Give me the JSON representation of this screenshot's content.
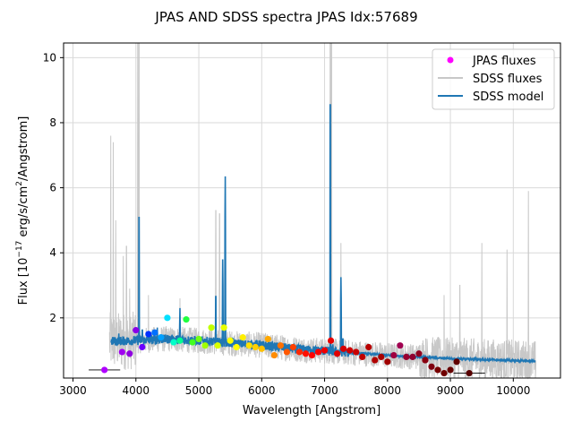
{
  "chart_data": {
    "type": "scatter",
    "title": "JPAS AND SDSS spectra JPAS Idx:57689",
    "xlabel": "Wavelength [Angstrom]",
    "ylabel_parts": {
      "prefix": "Flux [10",
      "exp": "−17",
      "mid": " erg/s/cm",
      "exp2": "2",
      "suffix": "/Angstrom]"
    },
    "xlim": [
      2850,
      10750
    ],
    "ylim": [
      0.15,
      10.45
    ],
    "xticks": [
      3000,
      4000,
      5000,
      6000,
      7000,
      8000,
      9000,
      10000
    ],
    "xtick_labels": [
      "3000",
      "4000",
      "5000",
      "6000",
      "7000",
      "8000",
      "9000",
      "10000"
    ],
    "yticks": [
      2,
      4,
      6,
      8,
      10
    ],
    "ytick_labels": [
      "2",
      "4",
      "6",
      "8",
      "10"
    ],
    "grid": true,
    "legend_position": "top-right",
    "legend": [
      {
        "label": "JPAS fluxes",
        "kind": "marker",
        "color": "#ff00ff"
      },
      {
        "label": "SDSS fluxes",
        "kind": "line",
        "color": "#c8c8c8"
      },
      {
        "label": "SDSS model",
        "kind": "line",
        "color": "#1f77b4"
      }
    ],
    "sdss_model": {
      "color": "#1f77b4",
      "x_range": [
        3600,
        10350
      ],
      "continuum": [
        [
          3600,
          1.28
        ],
        [
          4000,
          1.3
        ],
        [
          4500,
          1.35
        ],
        [
          5000,
          1.3
        ],
        [
          5500,
          1.22
        ],
        [
          6000,
          1.16
        ],
        [
          6500,
          1.05
        ],
        [
          7000,
          0.98
        ],
        [
          7500,
          0.92
        ],
        [
          8000,
          0.85
        ],
        [
          8500,
          0.8
        ],
        [
          9000,
          0.75
        ],
        [
          9500,
          0.72
        ],
        [
          10000,
          0.69
        ],
        [
          10350,
          0.67
        ]
      ],
      "emission_lines": [
        {
          "x": 3727,
          "peak": 1.6
        },
        {
          "x": 4050,
          "peak": 5.65
        },
        {
          "x": 4102,
          "peak": 1.8
        },
        {
          "x": 4340,
          "peak": 1.7
        },
        {
          "x": 4700,
          "peak": 2.3
        },
        {
          "x": 5270,
          "peak": 2.95
        },
        {
          "x": 5380,
          "peak": 3.8
        },
        {
          "x": 5420,
          "peak": 6.35
        },
        {
          "x": 7090,
          "peak": 9.5
        },
        {
          "x": 7130,
          "peak": 1.3
        },
        {
          "x": 7260,
          "peak": 3.25
        },
        {
          "x": 7290,
          "peak": 1.5
        }
      ]
    },
    "sdss_fluxes": {
      "color": "#c8c8c8",
      "x_range": [
        3580,
        10360
      ],
      "spikes": [
        {
          "x": 3600,
          "peak": 7.6
        },
        {
          "x": 3640,
          "peak": 7.4
        },
        {
          "x": 3680,
          "peak": 5.0
        },
        {
          "x": 3800,
          "peak": 3.9
        },
        {
          "x": 3850,
          "peak": 4.2
        },
        {
          "x": 3900,
          "peak": 2.9
        },
        {
          "x": 4030,
          "peak": 10.45
        },
        {
          "x": 4050,
          "peak": 10.45
        },
        {
          "x": 4200,
          "peak": 2.7
        },
        {
          "x": 4700,
          "peak": 2.6
        },
        {
          "x": 5270,
          "peak": 5.3
        },
        {
          "x": 5330,
          "peak": 5.2
        },
        {
          "x": 5420,
          "peak": 6.0
        },
        {
          "x": 7090,
          "peak": 10.45
        },
        {
          "x": 7110,
          "peak": 10.45
        },
        {
          "x": 7260,
          "peak": 4.3
        },
        {
          "x": 8900,
          "peak": 2.7
        },
        {
          "x": 9150,
          "peak": 3.0
        },
        {
          "x": 9500,
          "peak": 4.3
        },
        {
          "x": 9900,
          "peak": 4.1
        },
        {
          "x": 10240,
          "peak": 5.9
        }
      ]
    },
    "jpas_points": [
      {
        "x": 3500,
        "y": 0.4,
        "color": "#b000ff",
        "xerr": 250
      },
      {
        "x": 3780,
        "y": 0.95,
        "color": "#a000f0",
        "xerr": 0
      },
      {
        "x": 3900,
        "y": 0.9,
        "color": "#9000e0",
        "xerr": 0
      },
      {
        "x": 4000,
        "y": 1.62,
        "color": "#8a00e8",
        "xerr": 0
      },
      {
        "x": 4100,
        "y": 1.1,
        "color": "#6a00ff",
        "xerr": 0
      },
      {
        "x": 4200,
        "y": 1.5,
        "color": "#0030ff",
        "xerr": 0
      },
      {
        "x": 4300,
        "y": 1.55,
        "color": "#0070ff",
        "xerr": 0
      },
      {
        "x": 4400,
        "y": 1.4,
        "color": "#00a0ff",
        "xerr": 0
      },
      {
        "x": 4500,
        "y": 2.0,
        "color": "#00e0ff",
        "xerr": 0
      },
      {
        "x": 4600,
        "y": 1.25,
        "color": "#00ffc8",
        "xerr": 0
      },
      {
        "x": 4700,
        "y": 1.3,
        "color": "#00ff90",
        "xerr": 0
      },
      {
        "x": 4800,
        "y": 1.95,
        "color": "#20ff40",
        "xerr": 0
      },
      {
        "x": 4900,
        "y": 1.25,
        "color": "#40ff20",
        "xerr": 0
      },
      {
        "x": 5000,
        "y": 1.35,
        "color": "#70ff10",
        "xerr": 0
      },
      {
        "x": 5100,
        "y": 1.15,
        "color": "#a0ff00",
        "xerr": 0
      },
      {
        "x": 5200,
        "y": 1.7,
        "color": "#c0ff00",
        "xerr": 0
      },
      {
        "x": 5300,
        "y": 1.15,
        "color": "#d8ff00",
        "xerr": 0
      },
      {
        "x": 5400,
        "y": 1.7,
        "color": "#e8ff00",
        "xerr": 0
      },
      {
        "x": 5500,
        "y": 1.3,
        "color": "#f8ff00",
        "xerr": 0
      },
      {
        "x": 5600,
        "y": 1.1,
        "color": "#ffff00",
        "xerr": 0
      },
      {
        "x": 5700,
        "y": 1.4,
        "color": "#ffee00",
        "xerr": 0
      },
      {
        "x": 5800,
        "y": 1.15,
        "color": "#ffe000",
        "xerr": 0
      },
      {
        "x": 5900,
        "y": 1.1,
        "color": "#ffd000",
        "xerr": 0
      },
      {
        "x": 6000,
        "y": 1.05,
        "color": "#ffc000",
        "xerr": 0
      },
      {
        "x": 6100,
        "y": 1.35,
        "color": "#ffa800",
        "xerr": 0
      },
      {
        "x": 6200,
        "y": 0.85,
        "color": "#ff8c00",
        "xerr": 0
      },
      {
        "x": 6300,
        "y": 1.15,
        "color": "#ff7000",
        "xerr": 0
      },
      {
        "x": 6400,
        "y": 0.95,
        "color": "#ff5800",
        "xerr": 0
      },
      {
        "x": 6500,
        "y": 1.1,
        "color": "#ff4000",
        "xerr": 0
      },
      {
        "x": 6600,
        "y": 0.95,
        "color": "#ff2800",
        "xerr": 0
      },
      {
        "x": 6700,
        "y": 0.9,
        "color": "#ff1000",
        "xerr": 0
      },
      {
        "x": 6800,
        "y": 0.85,
        "color": "#ff0000",
        "xerr": 0
      },
      {
        "x": 6900,
        "y": 0.95,
        "color": "#f80000",
        "xerr": 0
      },
      {
        "x": 7000,
        "y": 1.0,
        "color": "#f00000",
        "xerr": 0
      },
      {
        "x": 7100,
        "y": 1.3,
        "color": "#e80000",
        "xerr": 0
      },
      {
        "x": 7200,
        "y": 0.9,
        "color": "#e00000",
        "xerr": 0
      },
      {
        "x": 7300,
        "y": 1.05,
        "color": "#d80000",
        "xerr": 0
      },
      {
        "x": 7400,
        "y": 1.0,
        "color": "#d00000",
        "xerr": 0
      },
      {
        "x": 7500,
        "y": 0.95,
        "color": "#c80000",
        "xerr": 0
      },
      {
        "x": 7600,
        "y": 0.8,
        "color": "#c00000",
        "xerr": 0
      },
      {
        "x": 7700,
        "y": 1.1,
        "color": "#b80000",
        "xerr": 0
      },
      {
        "x": 7800,
        "y": 0.7,
        "color": "#b00000",
        "xerr": 0
      },
      {
        "x": 7900,
        "y": 0.8,
        "color": "#a80000",
        "xerr": 0
      },
      {
        "x": 8000,
        "y": 0.65,
        "color": "#a00000",
        "xerr": 0
      },
      {
        "x": 8100,
        "y": 0.85,
        "color": "#a00040",
        "xerr": 0
      },
      {
        "x": 8200,
        "y": 1.15,
        "color": "#a00050",
        "xerr": 0
      },
      {
        "x": 8300,
        "y": 0.8,
        "color": "#980030",
        "xerr": 0
      },
      {
        "x": 8400,
        "y": 0.8,
        "color": "#900030",
        "xerr": 0
      },
      {
        "x": 8500,
        "y": 0.9,
        "color": "#900020",
        "xerr": 0
      },
      {
        "x": 8600,
        "y": 0.7,
        "color": "#880010",
        "xerr": 0
      },
      {
        "x": 8700,
        "y": 0.5,
        "color": "#800010",
        "xerr": 0
      },
      {
        "x": 8800,
        "y": 0.4,
        "color": "#780000",
        "xerr": 0
      },
      {
        "x": 8900,
        "y": 0.3,
        "color": "#700000",
        "xerr": 0
      },
      {
        "x": 9000,
        "y": 0.4,
        "color": "#680000",
        "xerr": 0
      },
      {
        "x": 9100,
        "y": 0.65,
        "color": "#600000",
        "xerr": 0
      },
      {
        "x": 9300,
        "y": 0.3,
        "color": "#580000",
        "xerr": 250
      }
    ]
  }
}
